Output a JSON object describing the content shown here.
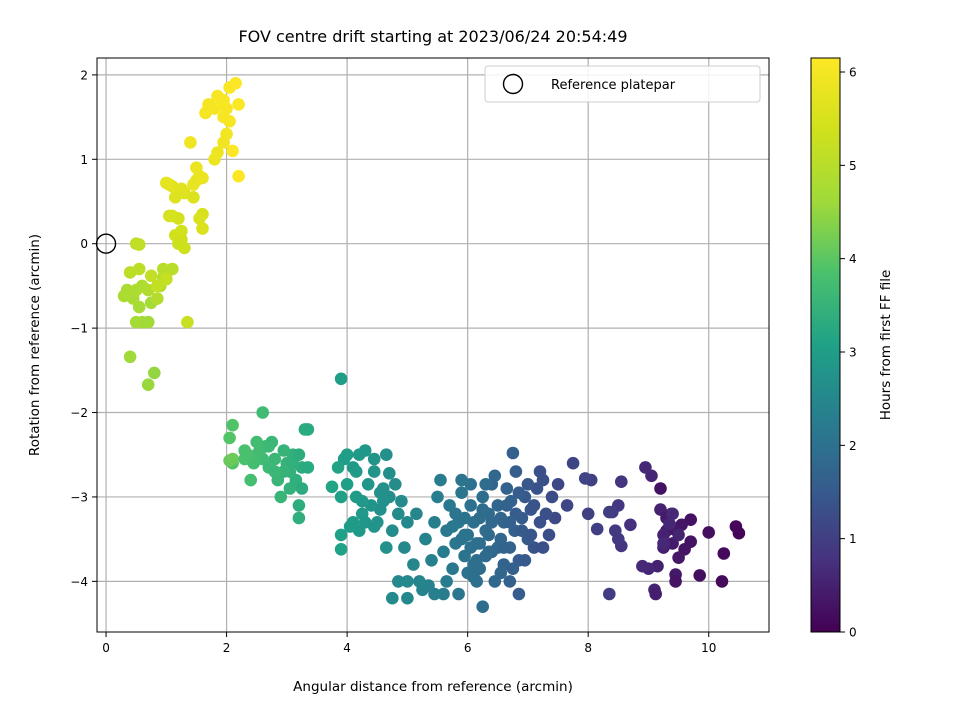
{
  "chart_data": {
    "type": "scatter",
    "title": "FOV centre drift starting at 2023/06/24 20:54:49",
    "xlabel": "Angular distance from reference (arcmin)",
    "ylabel": "Rotation from reference (arcmin)",
    "xlim": [
      -0.15,
      11.0
    ],
    "ylim": [
      -4.6,
      2.2
    ],
    "xticks": [
      0,
      2,
      4,
      6,
      8,
      10
    ],
    "xtick_labels": [
      "0",
      "2",
      "4",
      "6",
      "8",
      "10"
    ],
    "yticks": [
      -4,
      -3,
      -2,
      -1,
      0,
      1,
      2
    ],
    "ytick_labels": [
      "−4",
      "−3",
      "−2",
      "−1",
      "0",
      "1",
      "2"
    ],
    "grid": true,
    "legend": {
      "placement": "top-right",
      "entries": [
        {
          "label": "Reference platepar",
          "marker": "hollow-circle"
        }
      ]
    },
    "reference_point": {
      "x": 0,
      "y": 0
    },
    "colorbar": {
      "label": "Hours from first FF file",
      "range": [
        0,
        6.15
      ],
      "ticks": [
        0,
        1,
        2,
        3,
        4,
        5,
        6
      ],
      "tick_labels": [
        "0",
        "1",
        "2",
        "3",
        "4",
        "5",
        "6"
      ],
      "colormap": "viridis"
    },
    "points": [
      [
        10.5,
        -3.43,
        0.05
      ],
      [
        10.45,
        -3.35,
        0.1
      ],
      [
        10.25,
        -3.67,
        0.12
      ],
      [
        10.22,
        -4.0,
        0.15
      ],
      [
        10.0,
        -3.42,
        0.2
      ],
      [
        9.85,
        -3.93,
        0.22
      ],
      [
        9.7,
        -3.27,
        0.25
      ],
      [
        9.7,
        -3.53,
        0.28
      ],
      [
        9.6,
        -3.62,
        0.3
      ],
      [
        9.55,
        -3.33,
        0.33
      ],
      [
        9.5,
        -3.72,
        0.35
      ],
      [
        9.45,
        -3.92,
        0.38
      ],
      [
        9.4,
        -3.55,
        0.4
      ],
      [
        9.38,
        -3.2,
        0.42
      ],
      [
        9.3,
        -3.4,
        0.45
      ],
      [
        9.25,
        -3.6,
        0.48
      ],
      [
        9.2,
        -3.15,
        0.5
      ],
      [
        9.15,
        -3.82,
        0.52
      ],
      [
        9.1,
        -4.1,
        0.55
      ],
      [
        9.05,
        -2.75,
        0.58
      ],
      [
        9.0,
        -3.85,
        0.6
      ],
      [
        8.95,
        -2.65,
        0.62
      ],
      [
        8.9,
        -3.82,
        0.65
      ],
      [
        9.2,
        -2.9,
        0.25
      ],
      [
        9.42,
        -3.38,
        0.35
      ],
      [
        9.3,
        -3.25,
        0.4
      ],
      [
        9.45,
        -4.0,
        0.3
      ],
      [
        9.12,
        -4.15,
        0.45
      ],
      [
        9.25,
        -3.45,
        0.5
      ],
      [
        9.5,
        -3.45,
        0.55
      ],
      [
        9.35,
        -3.32,
        0.6
      ],
      [
        9.25,
        -3.55,
        0.62
      ],
      [
        9.4,
        -3.2,
        0.65
      ],
      [
        8.7,
        -3.33,
        0.75
      ],
      [
        8.55,
        -3.58,
        0.8
      ],
      [
        8.55,
        -2.82,
        0.82
      ],
      [
        8.5,
        -3.1,
        0.85
      ],
      [
        8.5,
        -3.5,
        0.88
      ],
      [
        8.45,
        -3.4,
        0.9
      ],
      [
        8.4,
        -3.18,
        0.92
      ],
      [
        8.35,
        -4.15,
        0.95
      ],
      [
        8.35,
        -3.18,
        0.98
      ],
      [
        8.15,
        -3.38,
        1.0
      ],
      [
        8.05,
        -2.8,
        1.02
      ],
      [
        8.0,
        -3.2,
        1.05
      ],
      [
        7.95,
        -2.78,
        1.08
      ],
      [
        7.75,
        -2.6,
        1.1
      ],
      [
        7.65,
        -3.1,
        1.12
      ],
      [
        7.5,
        -2.85,
        1.15
      ],
      [
        7.45,
        -3.25,
        1.2
      ],
      [
        7.4,
        -3.0,
        1.25
      ],
      [
        7.35,
        -3.45,
        1.28
      ],
      [
        7.3,
        -3.2,
        1.3
      ],
      [
        7.25,
        -2.8,
        1.32
      ],
      [
        7.2,
        -3.3,
        1.35
      ],
      [
        7.15,
        -2.9,
        1.38
      ],
      [
        7.1,
        -3.6,
        1.4
      ],
      [
        7.05,
        -3.15,
        1.42
      ],
      [
        7.0,
        -2.85,
        1.45
      ],
      [
        7.0,
        -3.5,
        1.48
      ],
      [
        6.95,
        -3.0,
        1.5
      ],
      [
        6.9,
        -3.25,
        1.52
      ],
      [
        6.85,
        -3.75,
        1.55
      ],
      [
        6.8,
        -2.7,
        1.58
      ],
      [
        6.78,
        -3.4,
        1.6
      ],
      [
        6.75,
        -2.48,
        1.62
      ],
      [
        6.72,
        -3.05,
        1.65
      ],
      [
        6.7,
        -3.6,
        1.68
      ],
      [
        6.65,
        -2.9,
        1.7
      ],
      [
        6.6,
        -3.3,
        1.72
      ],
      [
        6.55,
        -3.5,
        1.75
      ],
      [
        6.5,
        -3.1,
        1.78
      ],
      [
        6.45,
        -2.75,
        1.8
      ],
      [
        6.4,
        -3.65,
        1.82
      ],
      [
        6.35,
        -3.2,
        1.85
      ],
      [
        6.3,
        -3.4,
        1.88
      ],
      [
        6.25,
        -3.0,
        1.9
      ],
      [
        6.2,
        -3.55,
        1.92
      ],
      [
        6.15,
        -3.75,
        1.95
      ],
      [
        6.1,
        -3.3,
        1.98
      ],
      [
        6.05,
        -3.1,
        2.0
      ],
      [
        6.0,
        -3.45,
        2.02
      ],
      [
        5.95,
        -3.7,
        2.05
      ],
      [
        5.9,
        -2.95,
        2.08
      ],
      [
        5.85,
        -3.3,
        2.1
      ],
      [
        5.8,
        -3.55,
        2.12
      ],
      [
        5.75,
        -3.85,
        2.15
      ],
      [
        5.7,
        -3.1,
        2.18
      ],
      [
        5.65,
        -3.4,
        2.2
      ],
      [
        5.6,
        -3.65,
        2.22
      ],
      [
        5.55,
        -2.8,
        2.25
      ],
      [
        5.5,
        -3.0,
        2.28
      ],
      [
        5.45,
        -3.3,
        2.3
      ],
      [
        5.4,
        -3.75,
        2.32
      ],
      [
        5.35,
        -4.05,
        2.35
      ],
      [
        5.3,
        -3.5,
        2.38
      ],
      [
        5.25,
        -4.1,
        2.4
      ],
      [
        5.2,
        -4.0,
        2.42
      ],
      [
        5.15,
        -3.2,
        2.45
      ],
      [
        5.1,
        -3.8,
        2.48
      ],
      [
        7.2,
        -2.7,
        1.3
      ],
      [
        6.8,
        -3.2,
        1.55
      ],
      [
        6.6,
        -3.8,
        1.7
      ],
      [
        6.4,
        -2.85,
        1.75
      ],
      [
        6.2,
        -3.25,
        1.9
      ],
      [
        6.0,
        -3.9,
        2.0
      ],
      [
        5.8,
        -3.2,
        2.1
      ],
      [
        6.5,
        -3.6,
        1.8
      ],
      [
        6.3,
        -3.7,
        1.85
      ],
      [
        6.1,
        -3.8,
        1.95
      ],
      [
        5.9,
        -3.5,
        2.05
      ],
      [
        6.7,
        -3.3,
        1.65
      ],
      [
        6.9,
        -3.4,
        1.5
      ],
      [
        7.1,
        -3.1,
        1.4
      ],
      [
        6.25,
        -4.3,
        1.9
      ],
      [
        6.7,
        -4.0,
        1.65
      ],
      [
        6.85,
        -4.15,
        1.55
      ],
      [
        6.45,
        -4.0,
        1.8
      ],
      [
        6.15,
        -4.0,
        1.95
      ],
      [
        5.85,
        -4.15,
        2.1
      ],
      [
        5.6,
        -4.15,
        2.25
      ],
      [
        5.45,
        -4.15,
        2.3
      ],
      [
        4.75,
        -4.2,
        2.55
      ],
      [
        5.0,
        -4.2,
        2.5
      ],
      [
        5.0,
        -4.0,
        2.5
      ],
      [
        4.85,
        -4.0,
        2.52
      ],
      [
        5.65,
        -4.0,
        2.22
      ],
      [
        6.3,
        -2.85,
        1.88
      ],
      [
        6.05,
        -2.85,
        2.0
      ],
      [
        5.9,
        -2.8,
        2.08
      ],
      [
        6.6,
        -3.6,
        1.72
      ],
      [
        6.55,
        -3.9,
        1.75
      ],
      [
        6.35,
        -3.45,
        1.85
      ],
      [
        6.15,
        -3.55,
        1.95
      ],
      [
        5.95,
        -3.45,
        2.05
      ],
      [
        6.25,
        -3.15,
        1.9
      ],
      [
        6.05,
        -3.6,
        2.0
      ],
      [
        6.4,
        -3.3,
        1.82
      ],
      [
        6.2,
        -3.85,
        1.92
      ],
      [
        5.75,
        -3.35,
        2.15
      ],
      [
        5.95,
        -3.25,
        2.05
      ],
      [
        6.1,
        -3.95,
        1.98
      ],
      [
        6.35,
        -3.65,
        1.85
      ],
      [
        6.55,
        -3.25,
        1.75
      ],
      [
        6.75,
        -3.85,
        1.62
      ],
      [
        6.95,
        -3.75,
        1.5
      ],
      [
        7.05,
        -3.45,
        1.42
      ],
      [
        7.25,
        -3.6,
        1.32
      ],
      [
        6.85,
        -2.95,
        1.55
      ],
      [
        6.65,
        -3.1,
        1.68
      ],
      [
        5.0,
        -3.3,
        2.5
      ],
      [
        4.95,
        -3.6,
        2.52
      ],
      [
        4.9,
        -3.05,
        2.55
      ],
      [
        4.85,
        -3.2,
        2.58
      ],
      [
        4.8,
        -2.85,
        2.6
      ],
      [
        4.75,
        -3.4,
        2.62
      ],
      [
        4.7,
        -3.0,
        2.65
      ],
      [
        4.65,
        -3.6,
        2.68
      ],
      [
        4.6,
        -2.9,
        2.7
      ],
      [
        4.55,
        -3.15,
        2.72
      ],
      [
        4.5,
        -3.3,
        2.75
      ],
      [
        4.45,
        -2.55,
        2.78
      ],
      [
        4.4,
        -3.1,
        2.8
      ],
      [
        4.35,
        -2.85,
        2.82
      ],
      [
        4.3,
        -2.45,
        2.85
      ],
      [
        4.25,
        -3.2,
        2.88
      ],
      [
        4.2,
        -3.4,
        2.9
      ],
      [
        4.15,
        -3.0,
        2.92
      ],
      [
        4.1,
        -2.65,
        2.95
      ],
      [
        4.05,
        -3.35,
        2.98
      ],
      [
        4.0,
        -2.85,
        3.0
      ],
      [
        3.95,
        -2.55,
        3.02
      ],
      [
        3.9,
        -3.0,
        3.05
      ],
      [
        3.9,
        -3.45,
        3.08
      ],
      [
        3.9,
        -3.62,
        3.1
      ],
      [
        3.85,
        -2.65,
        3.12
      ],
      [
        3.75,
        -2.88,
        3.15
      ],
      [
        3.9,
        -1.6,
        3.0
      ],
      [
        4.0,
        -2.5,
        3.0
      ],
      [
        4.2,
        -2.5,
        2.9
      ],
      [
        4.45,
        -2.7,
        2.78
      ],
      [
        4.65,
        -2.5,
        2.68
      ],
      [
        4.7,
        -2.72,
        2.65
      ],
      [
        4.3,
        -3.3,
        2.85
      ],
      [
        4.45,
        -3.35,
        2.78
      ],
      [
        4.1,
        -3.3,
        2.95
      ],
      [
        4.25,
        -3.05,
        2.88
      ],
      [
        4.15,
        -2.7,
        2.92
      ],
      [
        4.6,
        -3.05,
        2.7
      ],
      [
        4.55,
        -2.95,
        2.72
      ],
      [
        3.3,
        -2.2,
        3.3
      ],
      [
        3.25,
        -2.65,
        3.32
      ],
      [
        3.2,
        -3.1,
        3.35
      ],
      [
        3.2,
        -3.25,
        3.38
      ],
      [
        3.15,
        -2.8,
        3.4
      ],
      [
        3.1,
        -2.5,
        3.42
      ],
      [
        3.05,
        -2.7,
        3.45
      ],
      [
        3.0,
        -2.6,
        3.48
      ],
      [
        2.95,
        -2.45,
        3.5
      ],
      [
        2.9,
        -3.0,
        3.52
      ],
      [
        2.85,
        -2.75,
        3.55
      ],
      [
        2.8,
        -2.55,
        3.58
      ],
      [
        2.75,
        -2.35,
        3.6
      ],
      [
        2.7,
        -2.65,
        3.62
      ],
      [
        2.65,
        -2.4,
        3.65
      ],
      [
        2.6,
        -2.55,
        3.68
      ],
      [
        2.55,
        -2.45,
        3.7
      ],
      [
        2.5,
        -2.5,
        3.72
      ],
      [
        2.45,
        -2.6,
        3.75
      ],
      [
        2.4,
        -2.8,
        3.78
      ],
      [
        2.35,
        -2.5,
        3.8
      ],
      [
        2.3,
        -2.45,
        3.82
      ],
      [
        2.6,
        -2.0,
        3.68
      ],
      [
        3.25,
        -2.9,
        3.32
      ],
      [
        3.35,
        -2.65,
        3.28
      ],
      [
        2.85,
        -2.8,
        3.55
      ],
      [
        3.1,
        -2.6,
        3.42
      ],
      [
        2.7,
        -2.4,
        3.62
      ],
      [
        2.1,
        -2.15,
        3.9
      ],
      [
        2.05,
        -2.3,
        3.92
      ],
      [
        2.1,
        -2.6,
        3.9
      ],
      [
        2.05,
        -2.57,
        4.1
      ],
      [
        2.1,
        -2.55,
        4.15
      ],
      [
        3.35,
        -2.2,
        3.28
      ],
      [
        3.2,
        -2.5,
        3.35
      ],
      [
        2.5,
        -2.35,
        3.72
      ],
      [
        2.95,
        -2.7,
        3.5
      ],
      [
        3.05,
        -2.9,
        3.45
      ],
      [
        2.3,
        -2.55,
        3.82
      ],
      [
        2.8,
        -2.7,
        3.58
      ],
      [
        0.8,
        -1.53,
        4.5
      ],
      [
        0.7,
        -1.67,
        4.55
      ],
      [
        0.4,
        -1.34,
        4.6
      ],
      [
        0.6,
        -0.93,
        4.62
      ],
      [
        0.7,
        -0.93,
        4.65
      ],
      [
        0.5,
        -0.93,
        4.68
      ],
      [
        0.75,
        -0.7,
        4.7
      ],
      [
        0.55,
        -0.75,
        4.72
      ],
      [
        0.45,
        -0.65,
        4.75
      ],
      [
        0.35,
        -0.55,
        4.78
      ],
      [
        0.3,
        -0.62,
        4.8
      ],
      [
        0.5,
        -0.55,
        4.82
      ],
      [
        0.6,
        -0.5,
        4.85
      ],
      [
        0.7,
        -0.55,
        4.88
      ],
      [
        0.85,
        -0.65,
        4.9
      ],
      [
        0.9,
        -0.5,
        4.92
      ],
      [
        0.95,
        -0.4,
        4.95
      ],
      [
        1.0,
        -0.35,
        4.98
      ],
      [
        1.1,
        -0.3,
        5.0
      ],
      [
        0.95,
        -0.3,
        5.02
      ],
      [
        0.4,
        -0.34,
        5.05
      ],
      [
        0.55,
        -0.3,
        5.08
      ],
      [
        0.5,
        0.0,
        5.1
      ],
      [
        0.55,
        -0.01,
        5.12
      ],
      [
        0.75,
        -0.38,
        5.15
      ],
      [
        0.85,
        -0.5,
        5.18
      ],
      [
        1.0,
        -0.42,
        5.2
      ],
      [
        1.35,
        -0.93,
        5.25
      ],
      [
        1.2,
        0.0,
        5.3
      ],
      [
        1.25,
        0.05,
        5.32
      ],
      [
        1.3,
        -0.05,
        5.35
      ],
      [
        1.15,
        0.1,
        5.38
      ],
      [
        1.25,
        0.15,
        5.4
      ],
      [
        1.2,
        0.3,
        5.42
      ],
      [
        1.1,
        0.33,
        5.45
      ],
      [
        1.05,
        0.33,
        5.48
      ],
      [
        1.6,
        0.35,
        5.5
      ],
      [
        1.55,
        0.3,
        5.52
      ],
      [
        1.6,
        0.18,
        5.55
      ],
      [
        1.45,
        0.55,
        5.58
      ],
      [
        1.3,
        0.6,
        5.6
      ],
      [
        1.15,
        0.55,
        5.62
      ],
      [
        1.25,
        0.65,
        5.65
      ],
      [
        1.1,
        0.68,
        5.68
      ],
      [
        1.05,
        0.7,
        5.7
      ],
      [
        1.0,
        0.72,
        5.72
      ],
      [
        1.5,
        0.75,
        5.75
      ],
      [
        1.45,
        0.7,
        5.78
      ],
      [
        1.55,
        0.8,
        5.8
      ],
      [
        1.6,
        0.78,
        5.82
      ],
      [
        1.5,
        0.9,
        5.85
      ],
      [
        1.8,
        1.0,
        5.88
      ],
      [
        1.85,
        1.08,
        5.9
      ],
      [
        1.4,
        1.2,
        5.92
      ],
      [
        1.95,
        1.2,
        5.95
      ],
      [
        2.0,
        1.3,
        5.97
      ],
      [
        1.65,
        1.55,
        6.0
      ],
      [
        1.8,
        1.6,
        6.02
      ],
      [
        1.95,
        1.5,
        6.03
      ],
      [
        2.05,
        1.45,
        6.05
      ],
      [
        1.85,
        1.75,
        6.07
      ],
      [
        1.9,
        1.68,
        6.08
      ],
      [
        2.05,
        1.85,
        6.1
      ],
      [
        2.15,
        1.9,
        6.12
      ],
      [
        2.2,
        1.65,
        6.13
      ],
      [
        2.1,
        1.1,
        6.14
      ],
      [
        2.2,
        0.8,
        6.15
      ],
      [
        1.95,
        1.7,
        6.06
      ],
      [
        2.0,
        1.6,
        6.04
      ],
      [
        1.7,
        1.65,
        6.01
      ]
    ]
  }
}
